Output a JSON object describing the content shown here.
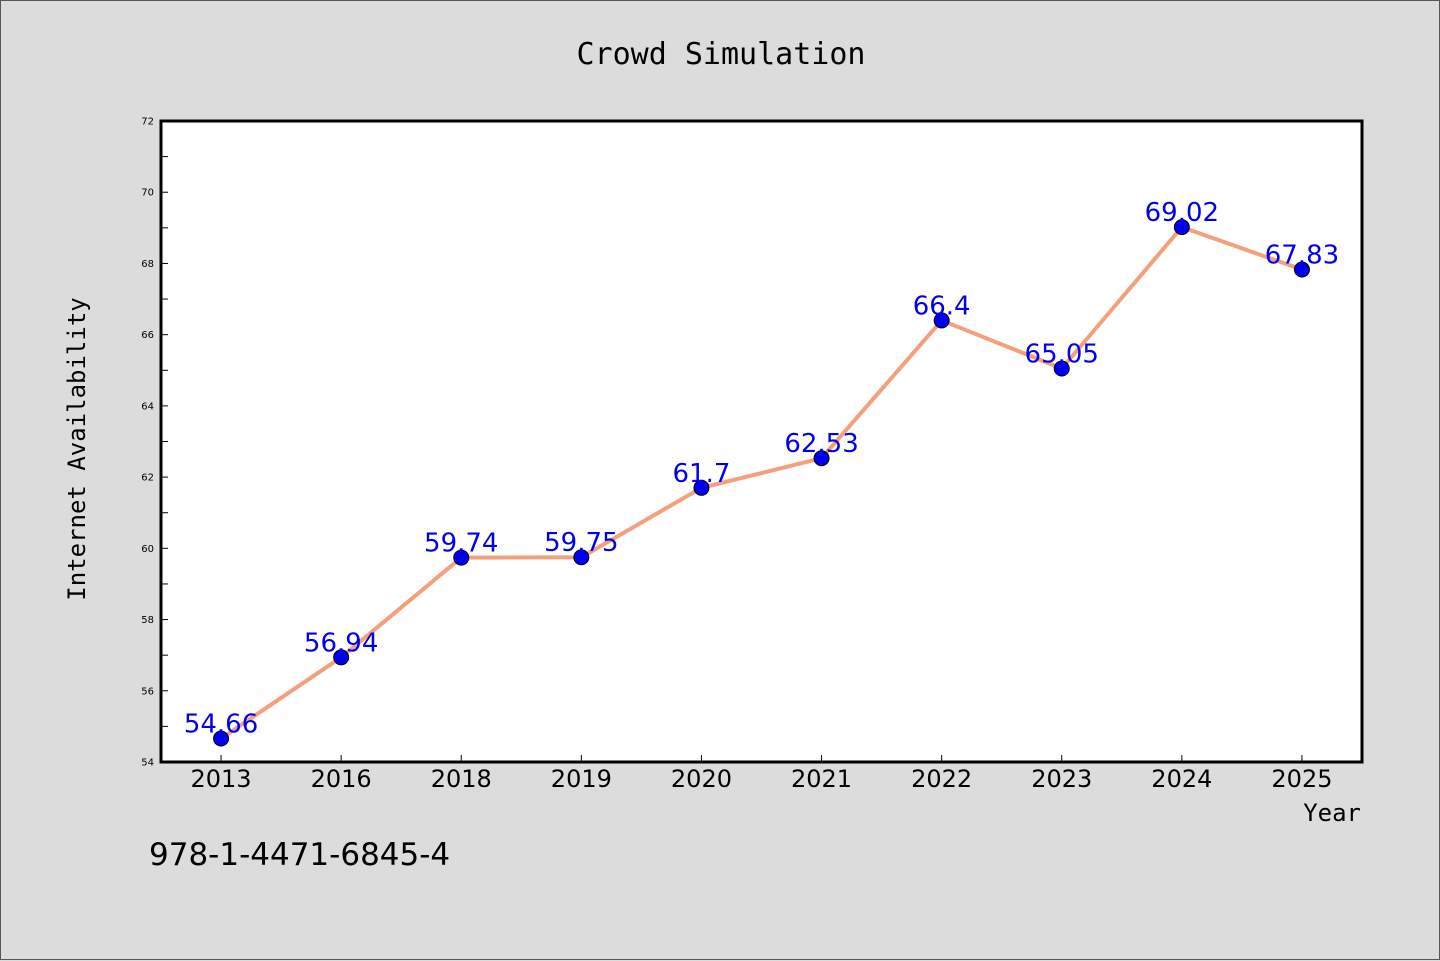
{
  "chart_data": {
    "type": "line",
    "title": "Crowd Simulation",
    "xlabel": "Year",
    "ylabel": "Internet Availability",
    "categories": [
      "2013",
      "2016",
      "2018",
      "2019",
      "2020",
      "2021",
      "2022",
      "2023",
      "2024",
      "2025"
    ],
    "series": [
      {
        "values": [
          54.66,
          56.94,
          59.74,
          59.75,
          61.7,
          62.53,
          66.4,
          65.05,
          69.02,
          67.83
        ],
        "labels": [
          "54.66",
          "56.94",
          "59.74",
          "59.75",
          "61.7",
          "62.53",
          "66.4",
          "65.05",
          "69.02",
          "67.83"
        ],
        "line_color": "#f4a07c",
        "marker_color": "#0000ee",
        "label_color": "#0000ee"
      }
    ],
    "ylim": [
      54,
      72
    ],
    "yticks": [
      "54",
      "56",
      "58",
      "60",
      "62",
      "64",
      "66",
      "68",
      "70",
      "72"
    ],
    "grid": false,
    "legend": "none"
  },
  "annotation": "978-1-4471-6845-4",
  "colors": {
    "background": "#dcdcdc",
    "plot_area": "#ffffff"
  }
}
